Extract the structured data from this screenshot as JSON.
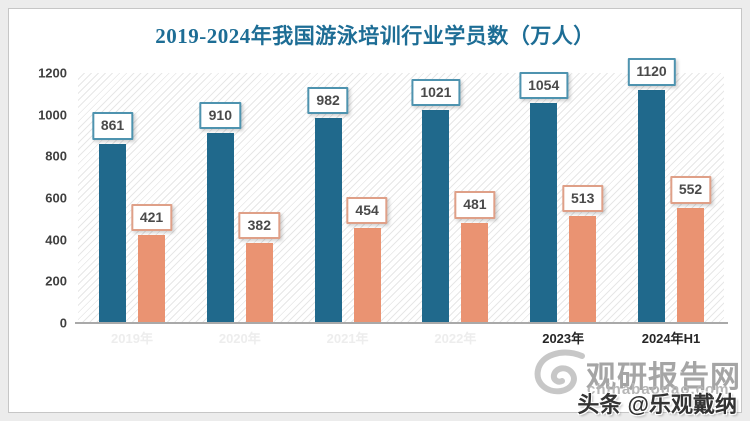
{
  "title": "2019-2024年我国游泳培训行业学员数（万人）",
  "chart_data": {
    "type": "bar",
    "title": "2019-2024年我国游泳培训行业学员数（万人）",
    "categories": [
      "2019年",
      "2020年",
      "2021年",
      "2022年",
      "2023年",
      "2024年H1"
    ],
    "category_labels_visible": [
      false,
      false,
      false,
      false,
      true,
      true
    ],
    "series": [
      {
        "id": "series-1",
        "color": "#20698c",
        "label_border_color": "#4e93af",
        "values": [
          861,
          910,
          982,
          1021,
          1054,
          1120
        ]
      },
      {
        "id": "series-2",
        "color": "#ea9372",
        "label_border_color": "#dfa088",
        "values": [
          421,
          382,
          454,
          481,
          513,
          552
        ]
      }
    ],
    "ylim": [
      0,
      1200
    ],
    "yticks": [
      1200,
      1000,
      800,
      600,
      400,
      200,
      0
    ],
    "grid": false,
    "legend_position": "none",
    "plot_background": "diagonal-hatch"
  },
  "watermark": {
    "site_name": "观研报告网",
    "site_url": "chinabaogao.com",
    "credit": "头条 @乐观戴纳"
  }
}
